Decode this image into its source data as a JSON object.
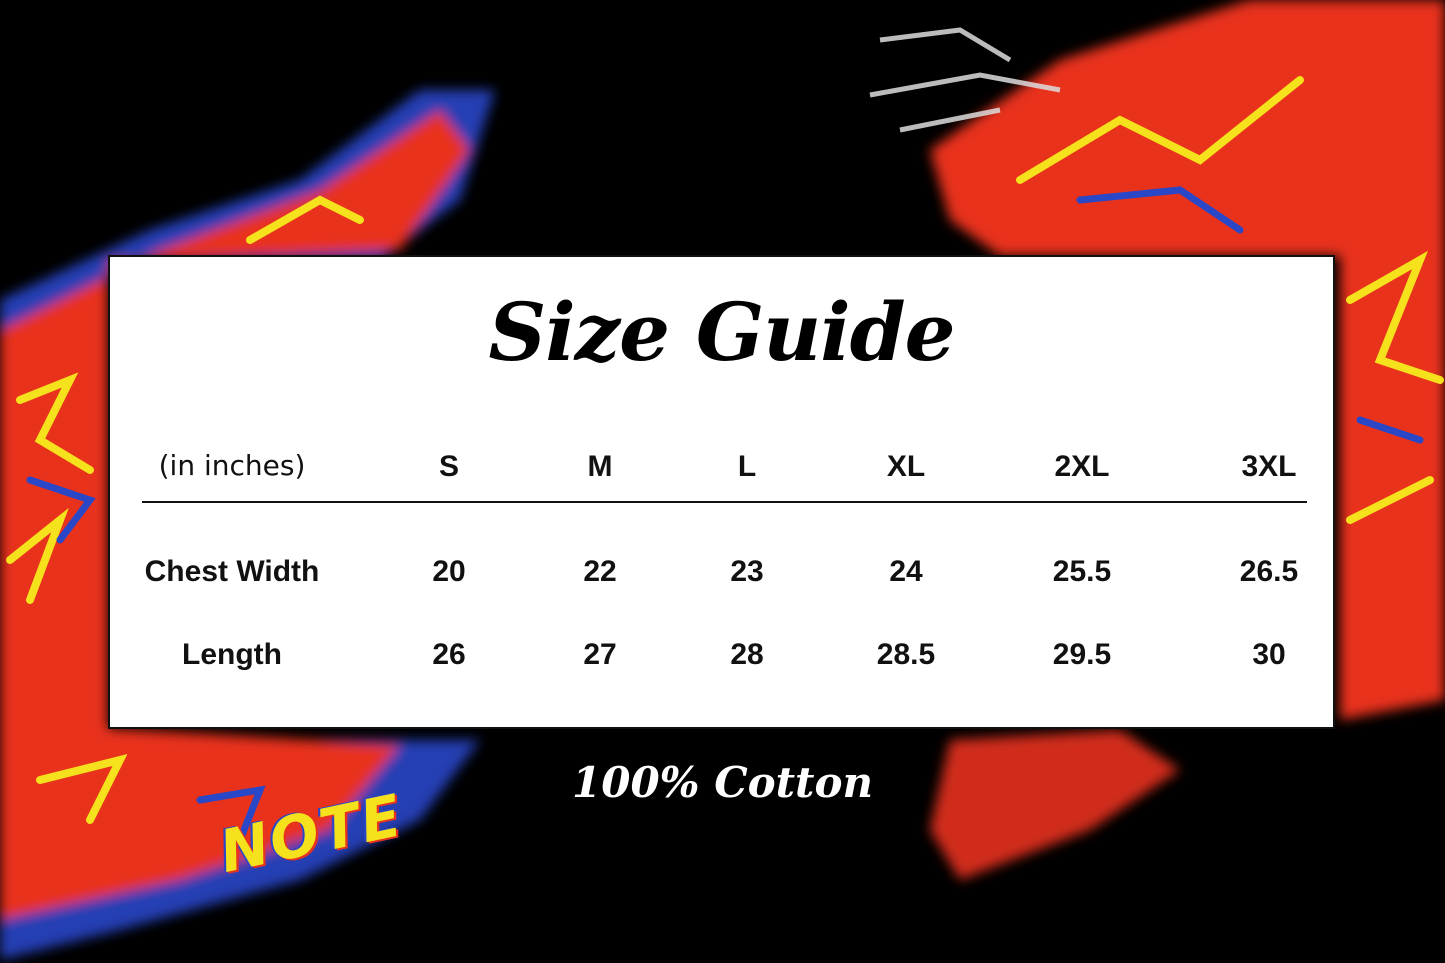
{
  "title": "Size Guide",
  "table": {
    "unit_label": "(in inches)",
    "sizes": [
      "S",
      "M",
      "L",
      "XL",
      "2XL",
      "3XL"
    ],
    "rows": [
      {
        "label": "Chest Width",
        "values": [
          "20",
          "22",
          "23",
          "24",
          "25.5",
          "26.5"
        ]
      },
      {
        "label": "Length",
        "values": [
          "26",
          "27",
          "28",
          "28.5",
          "29.5",
          "30"
        ]
      }
    ]
  },
  "footer": "100% Cotton",
  "artwork_text": "NOTE",
  "colors": {
    "background": "#000000",
    "card": "#ffffff",
    "paint_red": "#e8321e",
    "paint_yellow": "#f5e11c",
    "paint_blue": "#2a47c8"
  }
}
